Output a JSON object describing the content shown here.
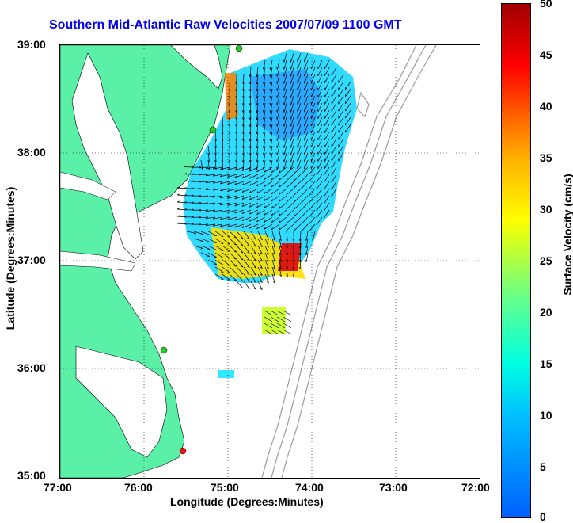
{
  "title": "Southern Mid-Atlantic Raw Velocities 2007/07/09 1100 GMT",
  "x_axis": {
    "label": "Longitude (Degrees:Minutes)",
    "ticks": [
      "77:00",
      "76:00",
      "75:00",
      "74:00",
      "73:00",
      "72:00"
    ]
  },
  "y_axis": {
    "label": "Latitude (Degrees:Minutes)",
    "ticks": [
      "39:00",
      "38:00",
      "37:00",
      "36:00",
      "35:00"
    ]
  },
  "colorbar": {
    "label": "Surface Velocity (cm/s)",
    "ticks": [
      "50",
      "45",
      "40",
      "35",
      "30",
      "25",
      "20",
      "15",
      "10",
      "5",
      "0"
    ],
    "range": [
      0,
      50
    ]
  },
  "colors": {
    "land": "#5af0a8",
    "title": "#0000ee",
    "bathymetry": "#9a9a9a",
    "station_green": "#22cc22",
    "station_red": "#ee1111"
  },
  "stations": [
    {
      "color": "green",
      "lon": -74.85,
      "lat": 39.0
    },
    {
      "color": "green",
      "lon": -75.15,
      "lat": 38.2
    },
    {
      "color": "green",
      "lon": -75.75,
      "lat": 36.2
    },
    {
      "color": "red",
      "lon": -75.5,
      "lat": 35.25
    }
  ]
}
